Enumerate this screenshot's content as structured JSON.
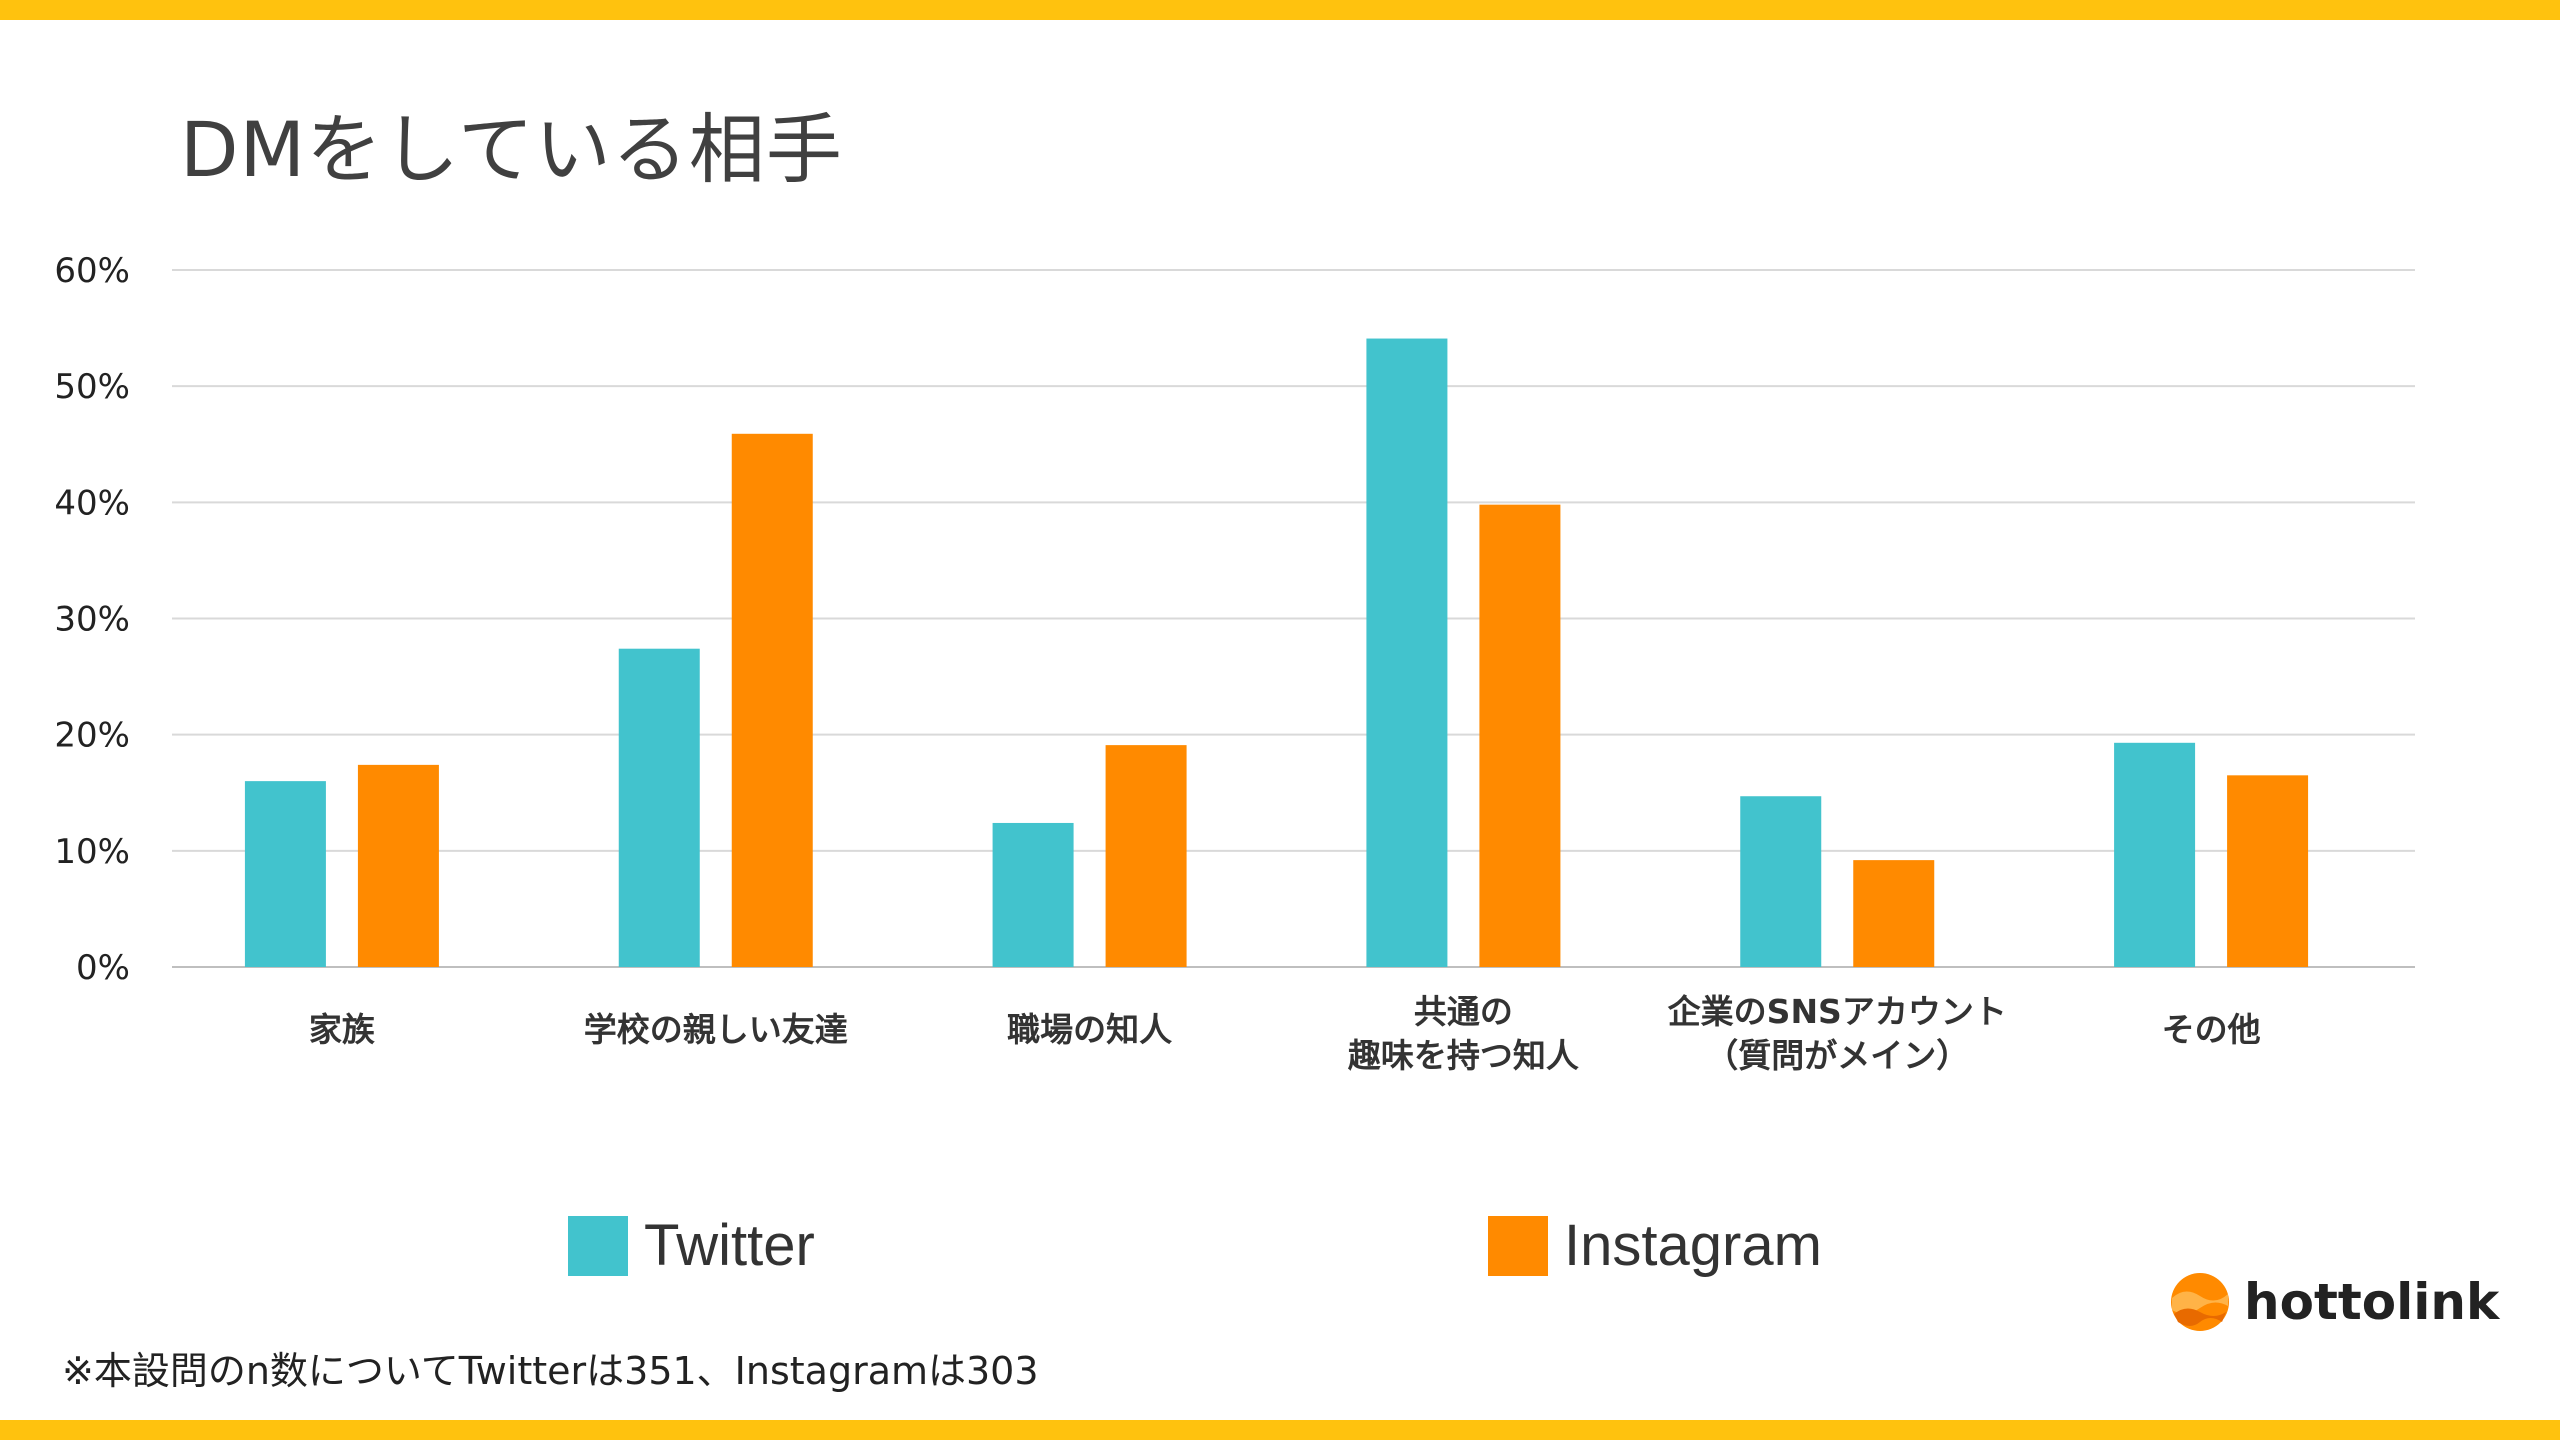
{
  "title": "DMをしている相手",
  "footnote": "※本設問のn数についてTwitterは351、Instagramは303",
  "logo": {
    "text": "hottolink",
    "icon": "hottolink-logo-icon"
  },
  "colors": {
    "band": "#FFC20E",
    "twitter": "#42C3CD",
    "instagram": "#FF8A00",
    "grid": "#D9D9D9"
  },
  "chart_data": {
    "type": "bar",
    "categories": [
      [
        "家族"
      ],
      [
        "学校の親しい友達"
      ],
      [
        "職場の知人"
      ],
      [
        "共通の",
        "趣味を持つ知人"
      ],
      [
        "企業のSNSアカウント",
        "（質問がメイン）"
      ],
      [
        "その他"
      ]
    ],
    "series": [
      {
        "name": "Twitter",
        "color": "#42C3CD",
        "values": [
          16,
          27.4,
          12.4,
          54.1,
          14.7,
          19.3
        ]
      },
      {
        "name": "Instagram",
        "color": "#FF8A00",
        "values": [
          17.4,
          45.9,
          19.1,
          39.8,
          9.2,
          16.5
        ]
      }
    ],
    "ylim": [
      0,
      60
    ],
    "yticks": [
      0,
      10,
      20,
      30,
      40,
      50,
      60
    ],
    "ytick_labels": [
      "0%",
      "10%",
      "20%",
      "30%",
      "40%",
      "50%",
      "60%"
    ],
    "grid": true,
    "legend": "bottom"
  }
}
